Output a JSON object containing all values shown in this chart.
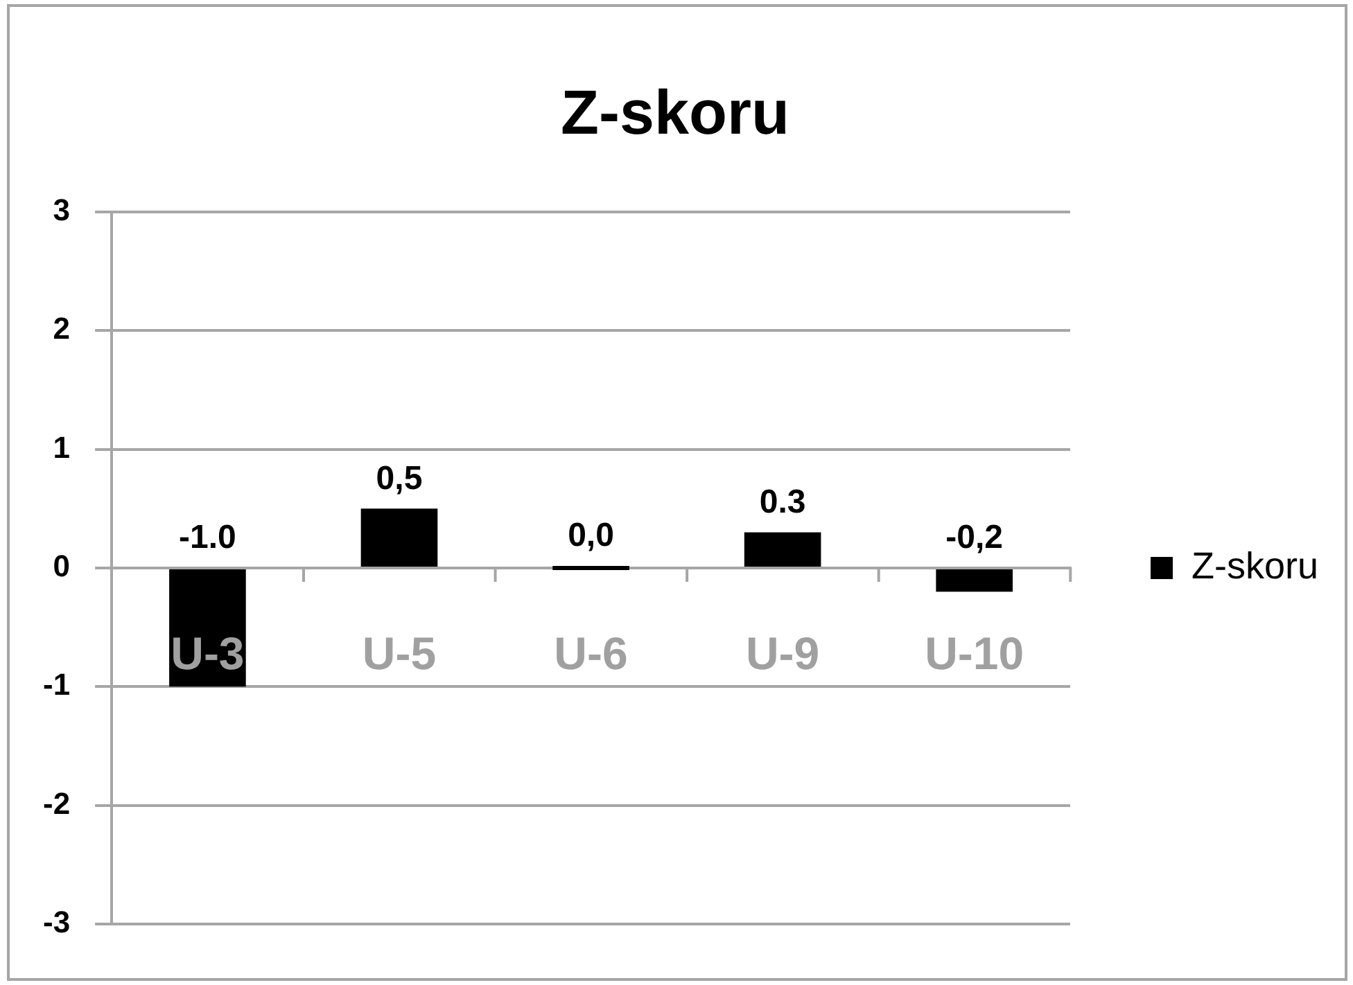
{
  "chart_data": {
    "type": "bar",
    "title": "Z-skoru",
    "categories": [
      "U-3",
      "U-5",
      "U-6",
      "U-9",
      "U-10"
    ],
    "series": [
      {
        "name": "Z-skoru",
        "color": "#000000",
        "values": [
          -1.0,
          0.5,
          0.0,
          0.3,
          -0.2
        ],
        "value_labels": [
          "-1.0",
          "0,5",
          "0,0",
          "0.3",
          "-0,2"
        ]
      }
    ],
    "ylim": [
      -3,
      3
    ],
    "yticks": [
      -3,
      -2,
      -1,
      0,
      1,
      2,
      3
    ],
    "grid": "y",
    "legend": "right"
  }
}
